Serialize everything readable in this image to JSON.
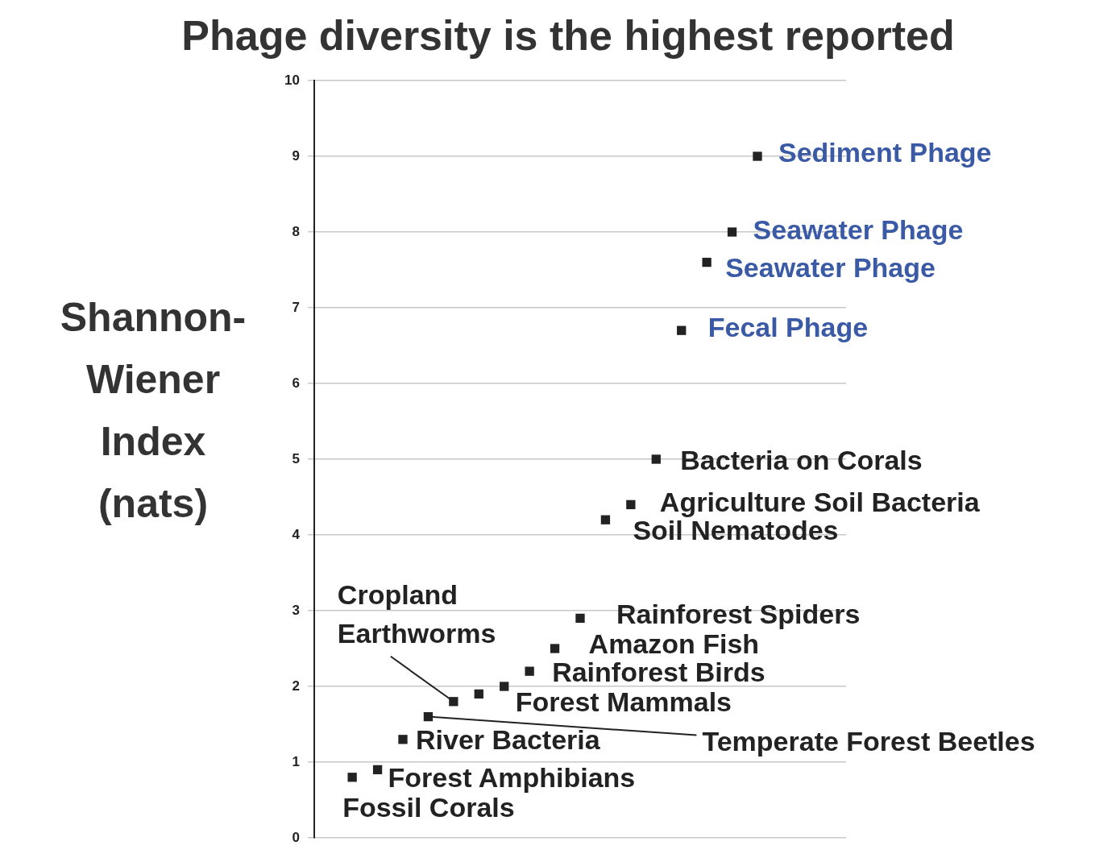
{
  "chart_data": {
    "type": "scatter",
    "title": "Phage diversity is the highest reported",
    "ylabel": "Shannon-Wiener Index (nats)",
    "categories": [
      null,
      null,
      null,
      null,
      null,
      null,
      null,
      null,
      null,
      null,
      null,
      null,
      null,
      null,
      null,
      null,
      null,
      null,
      null,
      null,
      null
    ],
    "series": [
      {
        "color": "#222222",
        "values": [
          null,
          0.8,
          0.9,
          1.3,
          1.6,
          1.8,
          1.9,
          2.0,
          2.2,
          2.5,
          2.9,
          4.2,
          4.4,
          5.0,
          null,
          null,
          null,
          null,
          null,
          null,
          null
        ],
        "value_labels": [
          null,
          "Fossil Corals",
          "Forest Amphibians",
          "River Bacteria",
          "Temperate Forest Beetles",
          "Cropland Earthworms",
          null,
          "Forest Mammals",
          "Rainforest Birds",
          "Amazon Fish",
          "Rainforest Spiders",
          "Soil Nematodes",
          "Agriculture Soil Bacteria",
          "Bacteria on Corals",
          null,
          null,
          null,
          null,
          null,
          null,
          null
        ]
      },
      {
        "color": "#222222",
        "values": [
          null,
          null,
          null,
          null,
          null,
          null,
          null,
          null,
          null,
          null,
          null,
          null,
          null,
          null,
          6.7,
          7.6,
          8.0,
          9.0,
          null,
          null,
          null
        ],
        "value_labels": [
          null,
          null,
          null,
          null,
          null,
          null,
          null,
          null,
          null,
          null,
          null,
          null,
          null,
          null,
          "Fecal Phage",
          "Seawater Phage",
          "Seawater Phage",
          "Sediment Phage",
          null,
          null,
          null
        ]
      }
    ],
    "ylim": [
      0,
      10
    ],
    "yticks": [
      0,
      1,
      2,
      3,
      4,
      5,
      6,
      7,
      8,
      9,
      10
    ],
    "grid": "y",
    "legend": false,
    "marker": "square"
  }
}
